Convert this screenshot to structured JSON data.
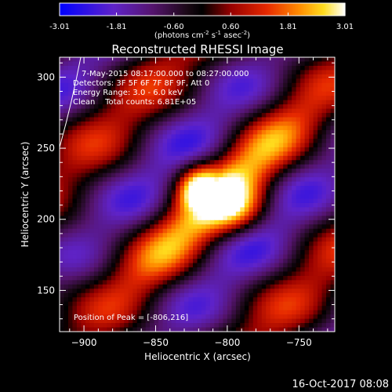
{
  "chart_data": {
    "type": "heatmap",
    "title": "Reconstructed RHESSI Image",
    "xlabel": "Heliocentric X (arcsec)",
    "ylabel": "Heliocentric Y (arcsec)",
    "xlim": [
      -917,
      -725
    ],
    "ylim": [
      121,
      314
    ],
    "xticks": [
      -900,
      -850,
      -800,
      -750
    ],
    "yticks": [
      150,
      200,
      250,
      300
    ],
    "colorbar": {
      "min": -3.01,
      "max": 3.01,
      "ticks": [
        "-3.01",
        "-1.81",
        "-0.60",
        "0.60",
        "1.81",
        "3.01"
      ],
      "units_prefix": "(photons cm",
      "units_exp1": "-2",
      "units_mid": " s",
      "units_exp2": "-1",
      "units_mid2": " asec",
      "units_exp3": "-2",
      "units_suffix": ")",
      "colormap": "blue-purple-black-red-yellow-white"
    },
    "info_lines": [
      "7-May-2015 08:17:00.000 to 08:27:00.000",
      "Detectors: 3F 5F 6F 7F 8F 9F, Att 0",
      "Energy Range: 3.0 - 6.0 keV",
      "Clean    Total counts: 6.81E+05"
    ],
    "peak_label": "Position of Peak = [-806,216]",
    "peak_position": [
      -806,
      216
    ],
    "peak_value": 3.01,
    "timestamp": "16-Oct-2017 08:08"
  }
}
